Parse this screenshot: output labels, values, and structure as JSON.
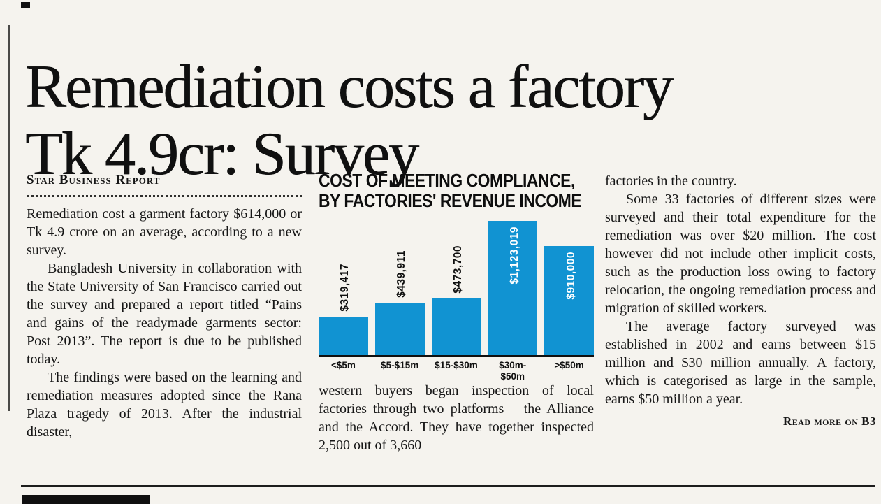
{
  "headline": {
    "line1": "Remediation costs a factory",
    "line2": "Tk 4.9cr: Survey"
  },
  "byline": "Star Business Report",
  "columns": {
    "col1": {
      "paragraphs": [
        "Remediation cost a garment factory $614,000 or Tk 4.9 crore on an average, according to a new survey.",
        "Bangladesh University in collaboration with the State University of San Francisco carried out the survey and prepared a report titled “Pains and gains of the readymade garments sector: Post 2013”. The report is due to be published today.",
        "The findings were based on the learning and remediation measures adopted since the Rana Plaza tragedy of 2013. After the industrial disaster,"
      ]
    },
    "col2": {
      "paragraph": "western buyers began inspection of local factories through two platforms – the Alliance and the Accord. They have together inspected 2,500 out of 3,660"
    },
    "col3": {
      "paragraphs": [
        "factories in the country.",
        "Some 33 factories of different sizes were surveyed and their total expenditure for the remediation was over $20 million. The cost however did not include other implicit costs, such as the production loss owing to factory relocation, the ongoing remediation process and migration of skilled workers.",
        "The average factory surveyed was established in 2002 and earns between $15 million and $30 million annually. A factory, which is categorised as large in the sample, earns $50 million a year."
      ],
      "read_more": "Read more on B3"
    }
  },
  "chart_data": {
    "type": "bar",
    "title": "COST OF MEETING COMPLIANCE, BY FACTORIES' REVENUE INCOME",
    "title_lines": [
      "COST OF MEETING COMPLIANCE,",
      "BY FACTORIES' REVENUE INCOME"
    ],
    "categories": [
      "<$5m",
      "$5-$15m",
      "$15-$30m",
      "$30m-\n$50m",
      ">$50m"
    ],
    "values": [
      319417,
      439911,
      473700,
      1123019,
      910000
    ],
    "value_labels": [
      "$319,417",
      "$439,911",
      "$473,700",
      "$1,123,019",
      "$910,000"
    ],
    "label_inside": [
      false,
      false,
      false,
      true,
      true
    ],
    "bar_color": "#1193d2",
    "xlabel": "",
    "ylabel": "",
    "ylim": [
      0,
      1150000
    ],
    "legend": "none",
    "grid": false
  }
}
